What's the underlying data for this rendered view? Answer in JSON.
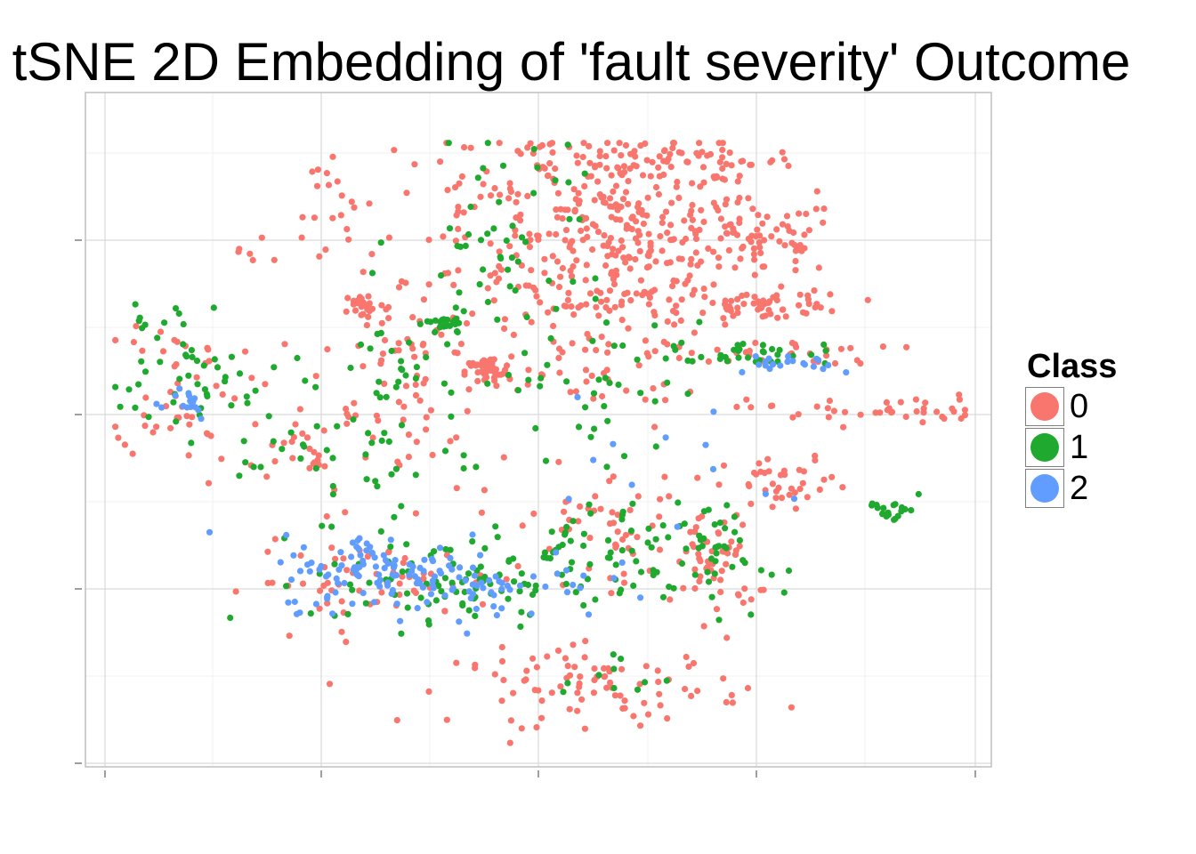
{
  "chart_data": {
    "type": "scatter",
    "title": "tSNE 2D Embedding of 'fault severity' Outcome",
    "xlabel": "",
    "ylabel": "",
    "xlim": [
      -42,
      42
    ],
    "ylim": [
      -37,
      29
    ],
    "grid": true,
    "legend": {
      "title": "Class",
      "position": "right",
      "entries": [
        {
          "label": "0",
          "color": "#F8766D"
        },
        {
          "label": "1",
          "color": "#1FAA2F"
        },
        {
          "label": "2",
          "color": "#619CFF"
        }
      ]
    },
    "clusters": [
      {
        "class": "0",
        "cx": 8,
        "cy": 17,
        "sx": 6,
        "sy": 5,
        "n": 260
      },
      {
        "class": "0",
        "cx": 11,
        "cy": 26,
        "sx": 7,
        "sy": 1.2,
        "n": 90
      },
      {
        "class": "0",
        "cx": 21,
        "cy": 18,
        "sx": 4,
        "sy": 2,
        "n": 70
      },
      {
        "class": "0",
        "cx": 22,
        "cy": 11,
        "sx": 4,
        "sy": 0.8,
        "n": 60
      },
      {
        "class": "0",
        "cx": -3,
        "cy": 20,
        "sx": 7,
        "sy": 5,
        "n": 90
      },
      {
        "class": "1",
        "cx": -3,
        "cy": 18,
        "sx": 5,
        "sy": 6,
        "n": 50
      },
      {
        "class": "1",
        "cx": -9,
        "cy": 9,
        "sx": 1,
        "sy": 0.6,
        "n": 25
      },
      {
        "class": "0",
        "cx": -5,
        "cy": 4,
        "sx": 1.1,
        "sy": 0.8,
        "n": 50
      },
      {
        "class": "0",
        "cx": -17,
        "cy": 11,
        "sx": 1,
        "sy": 0.7,
        "n": 25
      },
      {
        "class": "1",
        "cx": -14,
        "cy": 4,
        "sx": 3,
        "sy": 3,
        "n": 25
      },
      {
        "class": "0",
        "cx": -13,
        "cy": 6,
        "sx": 4,
        "sy": 4,
        "n": 50
      },
      {
        "class": "1",
        "cx": -33,
        "cy": 3,
        "sx": 5,
        "sy": 3,
        "n": 45
      },
      {
        "class": "0",
        "cx": -35,
        "cy": 3,
        "sx": 3,
        "sy": 4,
        "n": 45
      },
      {
        "class": "2",
        "cx": -35,
        "cy": 1,
        "sx": 2,
        "sy": 1,
        "n": 15
      },
      {
        "class": "0",
        "cx": 4,
        "cy": 4,
        "sx": 6,
        "sy": 3,
        "n": 40
      },
      {
        "class": "1",
        "cx": 6,
        "cy": 3,
        "sx": 6,
        "sy": 4,
        "n": 40
      },
      {
        "class": "1",
        "cx": 20,
        "cy": 6,
        "sx": 4,
        "sy": 0.6,
        "n": 30
      },
      {
        "class": "0",
        "cx": 22,
        "cy": 6,
        "sx": 6,
        "sy": 0.6,
        "n": 30
      },
      {
        "class": "2",
        "cx": 24,
        "cy": 5,
        "sx": 4,
        "sy": 0.6,
        "n": 20
      },
      {
        "class": "0",
        "cx": 32,
        "cy": 0,
        "sx": 6,
        "sy": 0.8,
        "n": 40
      },
      {
        "class": "0",
        "cx": 24,
        "cy": -8,
        "sx": 3,
        "sy": 1.5,
        "n": 35
      },
      {
        "class": "1",
        "cx": 34,
        "cy": -10,
        "sx": 1.2,
        "sy": 1,
        "n": 20
      },
      {
        "class": "0",
        "cx": 17,
        "cy": -16,
        "sx": 2,
        "sy": 3,
        "n": 55
      },
      {
        "class": "1",
        "cx": 17,
        "cy": -15,
        "sx": 2,
        "sy": 3,
        "n": 25
      },
      {
        "class": "1",
        "cx": 4,
        "cy": -16,
        "sx": 7,
        "sy": 3,
        "n": 90
      },
      {
        "class": "0",
        "cx": 6,
        "cy": -12,
        "sx": 6,
        "sy": 3,
        "n": 60
      },
      {
        "class": "2",
        "cx": -15,
        "cy": -17,
        "sx": 5,
        "sy": 2,
        "n": 110
      },
      {
        "class": "1",
        "cx": -10,
        "cy": -18,
        "sx": 6,
        "sy": 2.5,
        "n": 70
      },
      {
        "class": "0",
        "cx": -16,
        "cy": -18,
        "sx": 6,
        "sy": 2,
        "n": 60
      },
      {
        "class": "2",
        "cx": -4,
        "cy": -18,
        "sx": 5,
        "sy": 2,
        "n": 45
      },
      {
        "class": "0",
        "cx": 6,
        "cy": -29,
        "sx": 7,
        "sy": 2,
        "n": 90
      },
      {
        "class": "1",
        "cx": 7,
        "cy": -28,
        "sx": 3,
        "sy": 1.5,
        "n": 10
      },
      {
        "class": "0",
        "cx": -20,
        "cy": -4,
        "sx": 6,
        "sy": 3,
        "n": 50
      },
      {
        "class": "1",
        "cx": -18,
        "cy": -5,
        "sx": 6,
        "sy": 3,
        "n": 40
      },
      {
        "class": "2",
        "cx": 12,
        "cy": -6,
        "sx": 8,
        "sy": 4,
        "n": 12
      },
      {
        "class": "0",
        "cx": -20,
        "cy": 21,
        "sx": 2,
        "sy": 4,
        "n": 20
      },
      {
        "class": "1",
        "cx": -37,
        "cy": 10,
        "sx": 2,
        "sy": 1,
        "n": 8
      },
      {
        "class": "0",
        "cx": -28,
        "cy": 16,
        "sx": 1,
        "sy": 0.8,
        "n": 6
      }
    ]
  }
}
